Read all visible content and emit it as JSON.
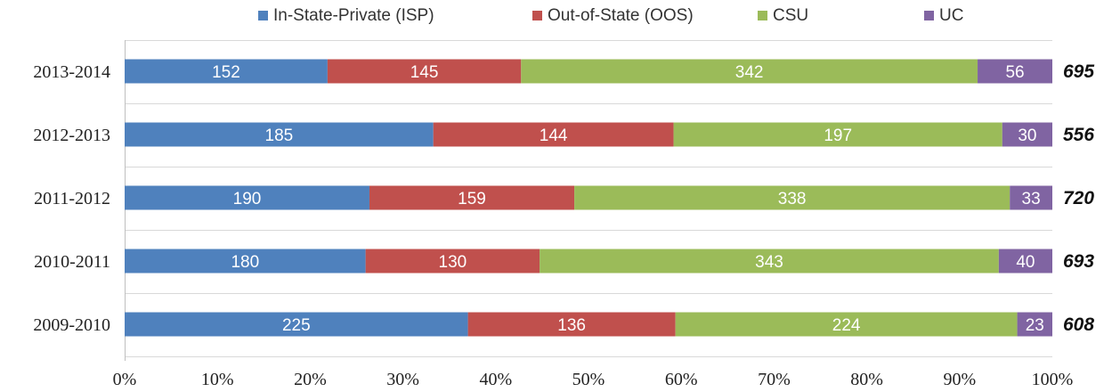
{
  "chart_data": {
    "type": "bar",
    "orientation": "horizontal",
    "stacked": "percent",
    "categories": [
      "2013-2014",
      "2012-2013",
      "2011-2012",
      "2010-2011",
      "2009-2010"
    ],
    "series": [
      {
        "name": "In-State-Private (ISP)",
        "color": "#4f81bd",
        "values": [
          152,
          185,
          190,
          180,
          225
        ]
      },
      {
        "name": "Out-of-State (OOS)",
        "color": "#c0504d",
        "values": [
          145,
          144,
          159,
          130,
          136
        ]
      },
      {
        "name": "CSU",
        "color": "#9bbb59",
        "values": [
          342,
          197,
          338,
          343,
          224
        ]
      },
      {
        "name": "UC",
        "color": "#8064a2",
        "values": [
          56,
          30,
          33,
          40,
          23
        ]
      }
    ],
    "totals": [
      695,
      556,
      720,
      693,
      608
    ],
    "x_ticks": [
      "0%",
      "10%",
      "20%",
      "30%",
      "40%",
      "50%",
      "60%",
      "70%",
      "80%",
      "90%",
      "100%"
    ],
    "xlim": [
      0,
      100
    ],
    "legend_position": "top",
    "grid": "horizontal"
  }
}
